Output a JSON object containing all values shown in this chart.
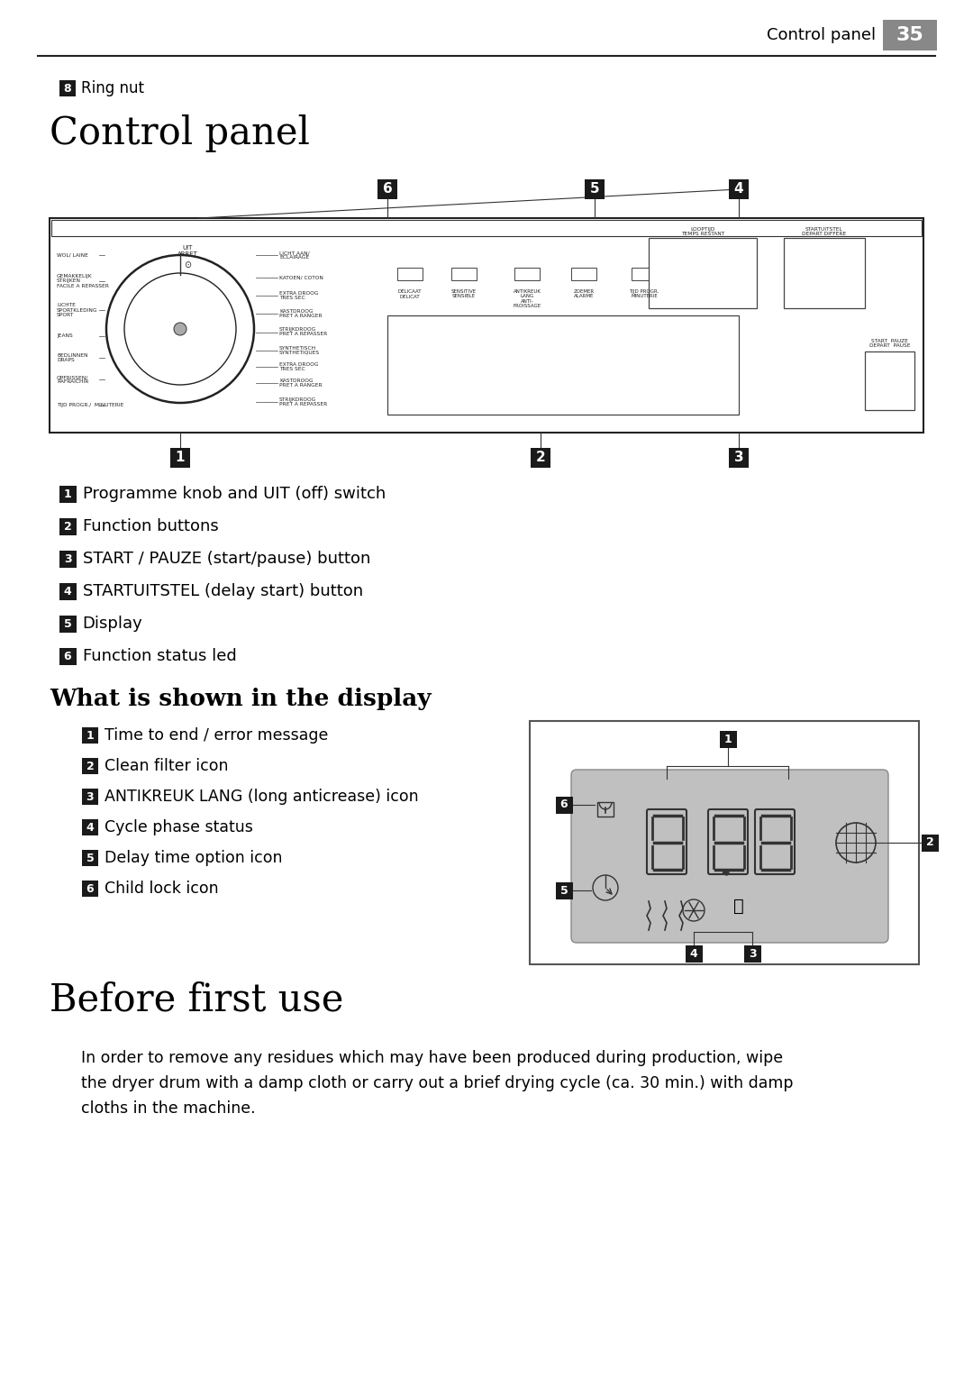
{
  "page_header_text": "Control panel",
  "page_number": "35",
  "ring_nut_label": "Ring nut",
  "ring_nut_number": "8",
  "section1_title": "Control panel",
  "section2_title": "What is shown in the display",
  "section3_title": "Before first use",
  "section3_body": "In order to remove any residues which may have been produced during production, wipe\nthe dryer drum with a damp cloth or carry out a brief drying cycle (ca. 30 min.) with damp\ncloths in the machine.",
  "control_panel_items": [
    {
      "num": "1",
      "text": "Programme knob and UIT (off) switch"
    },
    {
      "num": "2",
      "text": "Function buttons"
    },
    {
      "num": "3",
      "text": "START / PAUZE (start/pause) button"
    },
    {
      "num": "4",
      "text": "STARTUITSTEL (delay start) button"
    },
    {
      "num": "5",
      "text": "Display"
    },
    {
      "num": "6",
      "text": "Function status led"
    }
  ],
  "display_items": [
    {
      "num": "1",
      "text": "Time to end / error message"
    },
    {
      "num": "2",
      "text": "Clean filter icon"
    },
    {
      "num": "3",
      "text": "ANTIKREUK LANG (long anticrease) icon"
    },
    {
      "num": "4",
      "text": "Cycle phase status"
    },
    {
      "num": "5",
      "text": "Delay time option icon"
    },
    {
      "num": "6",
      "text": "Child lock icon"
    }
  ],
  "bg_color": "#ffffff",
  "text_color": "#000000",
  "badge_color": "#1a1a1a",
  "badge_text_color": "#ffffff",
  "header_bg": "#888888",
  "separator_color": "#000000"
}
